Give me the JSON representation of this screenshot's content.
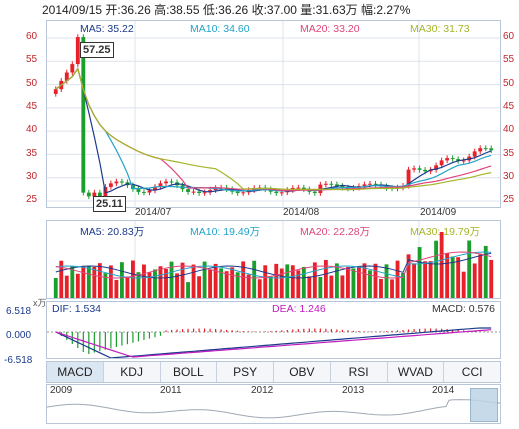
{
  "header": {
    "date": "2014/09/15",
    "open": "开:36.26",
    "high": "高:38.55",
    "low": "低:36.26",
    "close": "收:37.00",
    "volume": "量:31.63万",
    "change": "幅:2.27%"
  },
  "price_panel": {
    "ma5": "MA5: 35.22",
    "ma10": "MA10: 34.60",
    "ma20": "MA20: 33.20",
    "ma30": "MA30: 31.73",
    "max_label": "57.25",
    "min_label": "25.11",
    "y_ticks_left": [
      "60",
      "55",
      "50",
      "45",
      "40",
      "35",
      "30",
      "25"
    ],
    "y_ticks_right": [
      "60",
      "55",
      "50",
      "45",
      "40",
      "35",
      "30",
      "25"
    ],
    "x_ticks": [
      "2014/07",
      "2014/08",
      "2014/09"
    ]
  },
  "volume_panel": {
    "ma5": "MA5: 20.83万",
    "ma10": "MA10: 19.49万",
    "ma20": "MA20: 22.28万",
    "ma30": "MA30: 19.79万",
    "unit": "x万"
  },
  "macd_panel": {
    "dif": "DIF: 1.534",
    "dea": "DEA: 1.246",
    "macd": "MACD: 0.576",
    "y_top": "6.518",
    "y_mid": "0.000",
    "y_bot": "-6.518"
  },
  "tabs": [
    "MACD",
    "KDJ",
    "BOLL",
    "PSY",
    "OBV",
    "RSI",
    "WVAD",
    "CCI"
  ],
  "active_tab": "MACD",
  "overview": {
    "years": [
      "2009",
      "2011",
      "2012",
      "2013",
      "2014"
    ]
  },
  "colors": {
    "up": "#e8202a",
    "down": "#1a9e2c",
    "ma5": "#1b3a8c",
    "ma10": "#22a3c8",
    "ma20": "#e0457b",
    "ma30": "#a6b52a",
    "grid": "#dde3ec"
  }
}
